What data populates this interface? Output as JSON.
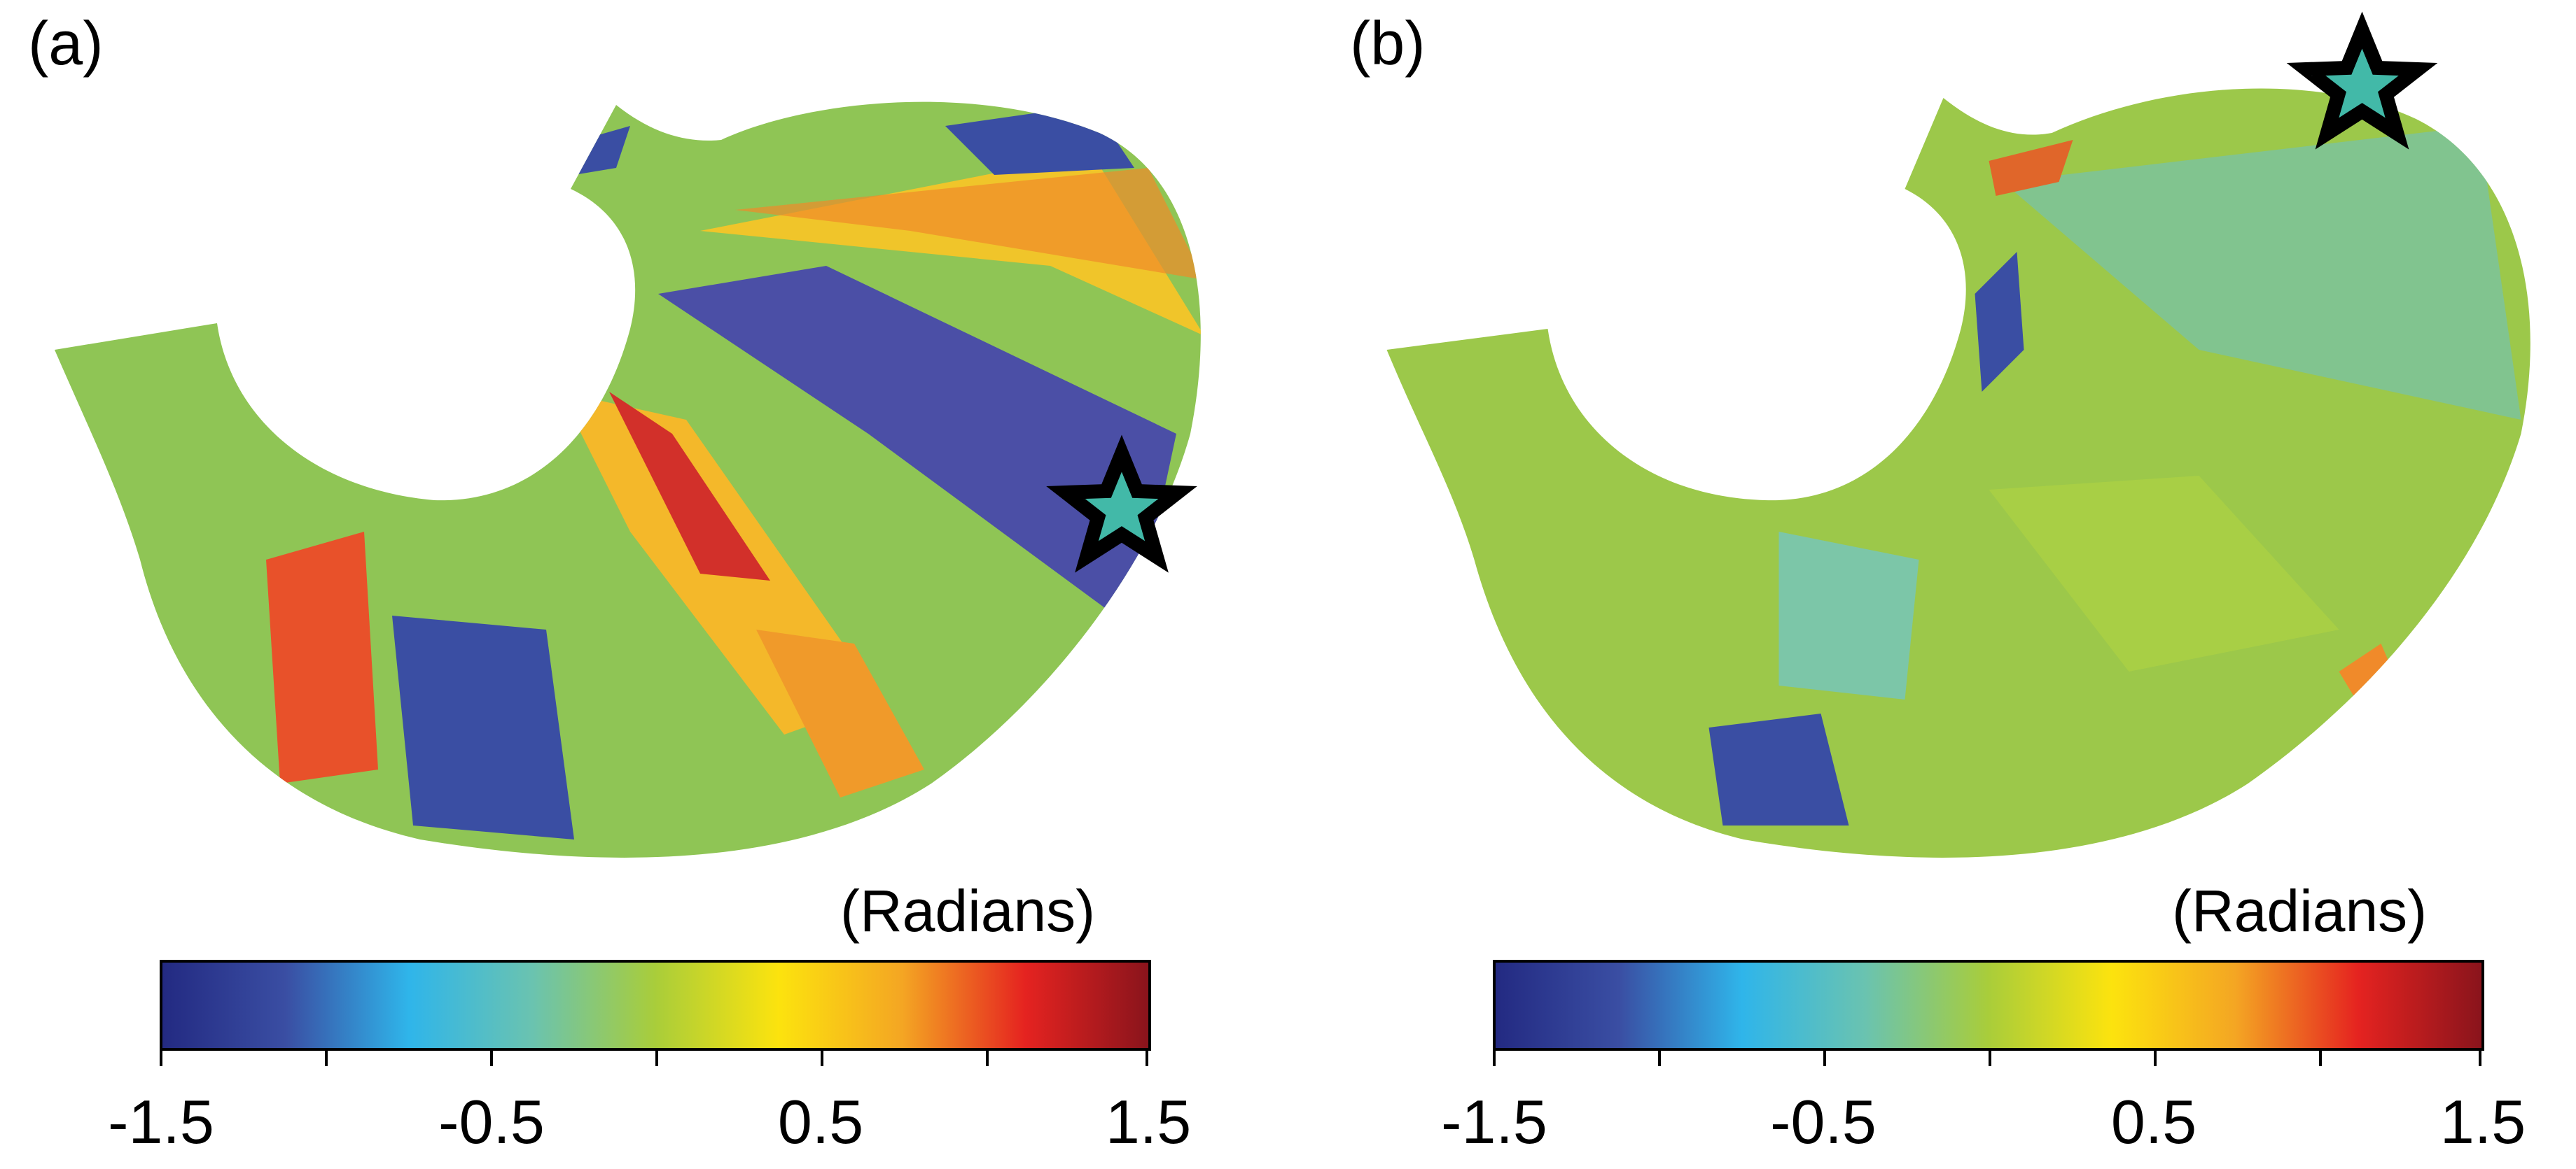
{
  "panels": [
    {
      "label": "(a)",
      "units_label": "(Radians)",
      "colorbar": {
        "min": -1.5,
        "max": 1.5,
        "tick_labels": [
          "-1.5",
          "-0.5",
          "0.5",
          "1.5"
        ],
        "colors": [
          "#232a82",
          "#3a4ea3",
          "#2fb5ea",
          "#6ac3b0",
          "#a9cd3a",
          "#fce30e",
          "#f4a623",
          "#e52320",
          "#8a141c"
        ]
      },
      "marker": "star-icon"
    },
    {
      "label": "(b)",
      "units_label": "(Radians)",
      "colorbar": {
        "min": -1.5,
        "max": 1.5,
        "tick_labels": [
          "-1.5",
          "-0.5",
          "0.5",
          "1.5"
        ],
        "colors": [
          "#232a82",
          "#3a4ea3",
          "#2fb5ea",
          "#6ac3b0",
          "#a9cd3a",
          "#fce30e",
          "#f4a623",
          "#e52320",
          "#8a141c"
        ]
      },
      "marker": "star-icon"
    }
  ]
}
